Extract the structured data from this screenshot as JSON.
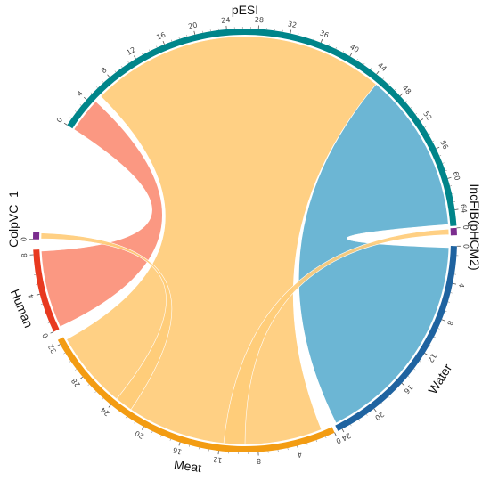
{
  "chart_data": {
    "type": "chord",
    "sectors": [
      {
        "name": "pESI",
        "color": "#00858a",
        "ticks": [
          "0",
          "4",
          "8",
          "12",
          "16",
          "20",
          "24",
          "28",
          "32",
          "36",
          "40",
          "44",
          "48",
          "52",
          "56",
          "60",
          "64"
        ]
      },
      {
        "name": "IncFIB(pHCM2)",
        "color": "#7b2d8e",
        "ticks": [
          "0"
        ]
      },
      {
        "name": "Water",
        "color": "#1f63a0",
        "ticks": [
          "0",
          "4",
          "8",
          "12",
          "16",
          "20",
          "24"
        ]
      },
      {
        "name": "Meat",
        "color": "#f39c12",
        "ticks": [
          "0",
          "4",
          "8",
          "12",
          "16",
          "20",
          "24",
          "28",
          "32"
        ]
      },
      {
        "name": "Human",
        "color": "#e8391f",
        "ticks": [
          "0",
          "4",
          "8"
        ]
      },
      {
        "name": "ColpVC_1",
        "color": "#7b2d8e",
        "ticks": [
          "0"
        ]
      }
    ],
    "links": [
      {
        "from": "pESI",
        "to": "Meat",
        "value": 32,
        "color": "#ffcc7a"
      },
      {
        "from": "pESI",
        "to": "Water",
        "value": 24,
        "color": "#5fb0d0"
      },
      {
        "from": "pESI",
        "to": "Human",
        "value": 8,
        "color": "#fb8f77"
      },
      {
        "from": "IncFIB(pHCM2)",
        "to": "Meat",
        "value": 1,
        "color": "#ffcc7a"
      },
      {
        "from": "ColpVC_1",
        "to": "Meat",
        "value": 1,
        "color": "#ffcc7a"
      }
    ]
  }
}
